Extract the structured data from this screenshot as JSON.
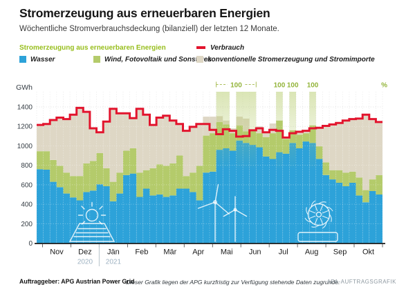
{
  "header": {
    "title": "Stromerzeugung aus erneuerbaren Energien",
    "subtitle": "Wöchentliche Stromverbrauchsdeckung (bilanziell) der letzten 12 Monate."
  },
  "legend": {
    "renewables_title": "Stromerzeugung aus erneuerbaren Energien",
    "items": [
      {
        "label": "Wasser"
      },
      {
        "label": "Wind, Fotovoltaik und Sonstiges"
      },
      {
        "label": "konventionelle Stromerzeugung und Stromimporte"
      }
    ],
    "verbrauch_label": "Verbrauch"
  },
  "chart_data": {
    "type": "stacked-bar-with-step-line",
    "title": "Stromerzeugung aus erneuerbaren Energien",
    "unit": "GWh",
    "ylim": [
      0,
      1400
    ],
    "yticks": [
      0,
      200,
      400,
      600,
      800,
      1000,
      1200,
      1400
    ],
    "grid": true,
    "months": [
      "Nov",
      "Dez",
      "Jän",
      "Feb",
      "Mär",
      "Apr",
      "Mai",
      "Jun",
      "Jul",
      "Aug",
      "Sep",
      "Okt"
    ],
    "years": [
      {
        "label": "2020",
        "month_index": 1
      },
      {
        "label": "2021",
        "month_index": 2
      }
    ],
    "series_names": {
      "wasser": "Wasser",
      "wind_pv": "Wind, Fotovoltaik und Sonstiges",
      "konventionell": "konventionelle Stromerzeugung und Stromimporte",
      "verbrauch": "Verbrauch"
    },
    "wasser": [
      760,
      755,
      630,
      575,
      510,
      470,
      440,
      525,
      540,
      605,
      585,
      430,
      510,
      700,
      715,
      475,
      560,
      490,
      500,
      475,
      490,
      560,
      560,
      525,
      440,
      725,
      735,
      960,
      975,
      950,
      1055,
      1030,
      1010,
      985,
      890,
      865,
      935,
      920,
      1030,
      975,
      1045,
      1030,
      865,
      700,
      655,
      620,
      585,
      620,
      490,
      420,
      535,
      500
    ],
    "wind_pv": [
      185,
      190,
      225,
      220,
      215,
      220,
      250,
      295,
      305,
      320,
      185,
      200,
      215,
      250,
      260,
      250,
      190,
      280,
      310,
      320,
      330,
      340,
      130,
      200,
      355,
      380,
      395,
      285,
      245,
      180,
      155,
      120,
      155,
      145,
      200,
      265,
      325,
      150,
      130,
      140,
      85,
      180,
      130,
      130,
      95,
      130,
      140,
      115,
      185,
      125,
      120,
      200
    ],
    "konventionell": [
      270,
      280,
      410,
      495,
      550,
      630,
      700,
      530,
      335,
      215,
      480,
      750,
      610,
      385,
      310,
      655,
      570,
      445,
      480,
      515,
      440,
      325,
      465,
      470,
      430,
      195,
      170,
      60,
      40,
      50,
      90,
      130,
      0,
      70,
      50,
      100,
      0,
      15,
      0,
      30,
      25,
      0,
      190,
      375,
      470,
      485,
      535,
      540,
      605,
      775,
      620,
      545
    ],
    "verbrauch": [
      1215,
      1225,
      1265,
      1290,
      1275,
      1320,
      1390,
      1350,
      1180,
      1140,
      1250,
      1380,
      1335,
      1335,
      1285,
      1380,
      1320,
      1215,
      1290,
      1310,
      1260,
      1225,
      1155,
      1195,
      1225,
      1225,
      1165,
      1120,
      1170,
      1155,
      1095,
      1100,
      1160,
      1180,
      1140,
      1165,
      1155,
      1085,
      1130,
      1145,
      1155,
      1180,
      1185,
      1205,
      1220,
      1235,
      1260,
      1275,
      1280,
      1320,
      1275,
      1245
    ],
    "full_coverage_weeks": [
      28,
      29,
      31,
      32,
      33,
      37,
      39,
      42
    ],
    "annotations": {
      "range": {
        "label": "100",
        "from_week": 28,
        "to_week": 33
      },
      "singles": [
        {
          "label": "100",
          "week": 37
        },
        {
          "label": "100",
          "week": 39
        },
        {
          "label": "100",
          "week": 42
        }
      ],
      "unit_label": "%"
    },
    "colors": {
      "wasser": "#2da2d9",
      "wind_pv": "#b4cb6b",
      "konventionell": "#ded7c5",
      "verbrauch": "#e2142d",
      "band": "#b5cb6a",
      "renewables_title": "#97be1c",
      "annotation": "#93b43a"
    },
    "icons": [
      "solar-panel-icon",
      "wind-turbine-icon",
      "water-turbine-icon"
    ]
  },
  "footer": {
    "client": "Auftraggeber: APG Austrian Power Grid",
    "note": "Dieser Grafik liegen der APG kurzfristig zur Verfügung stehende Daten zugrunde.",
    "credit": "APA-AUFTRAGSGRAFIK"
  }
}
